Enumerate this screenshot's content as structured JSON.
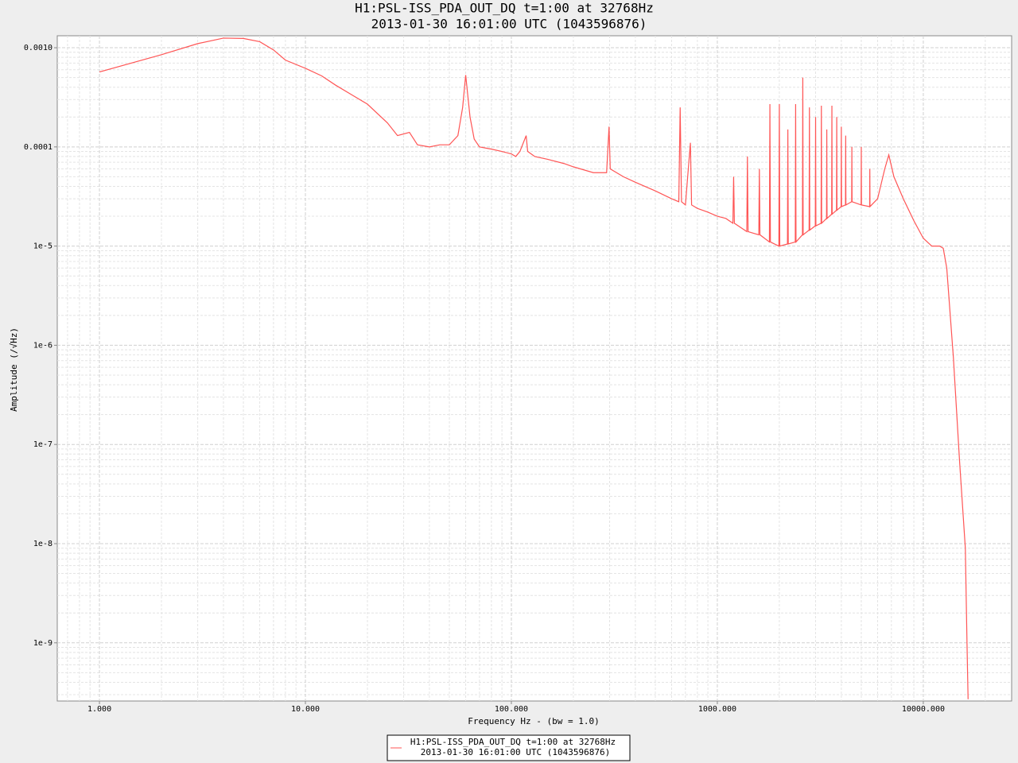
{
  "chart_data": {
    "type": "line",
    "title": "H1:PSL-ISS_PDA_OUT_DQ t=1:00 at 32768Hz",
    "subtitle": "2013-01-30 16:01:00 UTC (1043596876)",
    "x_label": "Frequency Hz - (bw = 1.0)",
    "y_label": "Amplitude  (/√Hz)",
    "x_scale": "log",
    "y_scale": "log",
    "grid": true,
    "xlim": [
      0.624,
      26850
    ],
    "ylim": [
      2.59e-10,
      0.00132
    ],
    "xticks": [
      {
        "value": 1,
        "label": "1.000"
      },
      {
        "value": 10,
        "label": "10.000"
      },
      {
        "value": 100,
        "label": "100.000"
      },
      {
        "value": 1000,
        "label": "1000.000"
      },
      {
        "value": 10000,
        "label": "10000.000"
      }
    ],
    "yticks": [
      {
        "value": 0.001,
        "label": "0.0010"
      },
      {
        "value": 0.0001,
        "label": "0.0001"
      },
      {
        "value": 1e-05,
        "label": "1e-5"
      },
      {
        "value": 1e-06,
        "label": "1e-6"
      },
      {
        "value": 1e-07,
        "label": "1e-7"
      },
      {
        "value": 1e-08,
        "label": "1e-8"
      },
      {
        "value": 1e-09,
        "label": "1e-9"
      }
    ],
    "x": [
      1,
      2,
      3,
      4,
      5,
      6,
      7,
      8,
      10,
      12,
      14,
      17,
      20,
      25,
      28,
      32,
      35,
      40,
      45,
      50,
      55,
      58,
      60,
      63,
      66,
      70,
      80,
      90,
      100,
      105,
      110,
      118,
      120,
      130,
      150,
      180,
      200,
      250,
      290,
      298,
      302,
      350,
      400,
      500,
      600,
      650,
      660,
      670,
      700,
      740,
      750,
      800,
      900,
      1000,
      1100,
      1190,
      1200,
      1210,
      1390,
      1400,
      1410,
      1590,
      1600,
      1610,
      1790,
      1800,
      1810,
      1990,
      2000,
      2010,
      2190,
      2200,
      2210,
      2390,
      2400,
      2410,
      2590,
      2600,
      2610,
      2790,
      2800,
      2810,
      2990,
      3000,
      3010,
      3190,
      3200,
      3210,
      3390,
      3400,
      3410,
      3590,
      3600,
      3610,
      3790,
      3800,
      3810,
      3990,
      4000,
      4010,
      4190,
      4200,
      4210,
      4490,
      4500,
      4510,
      4990,
      5000,
      5010,
      5490,
      5500,
      5510,
      6000,
      6500,
      6800,
      7200,
      8000,
      9000,
      10000,
      11000,
      12000,
      12500,
      13000,
      14000,
      15000,
      16000,
      16300,
      16500
    ],
    "series": [
      {
        "name": "H1:PSL-ISS_PDA_OUT_DQ t=1:00 at 32768Hz",
        "color": "#ff5555",
        "values": [
          0.00057,
          0.00085,
          0.0011,
          0.00125,
          0.00124,
          0.00115,
          0.00095,
          0.00075,
          0.00062,
          0.00052,
          0.00042,
          0.00033,
          0.00027,
          0.000175,
          0.00013,
          0.00014,
          0.000105,
          0.0001,
          0.000105,
          0.000105,
          0.00013,
          0.00025,
          0.00053,
          0.0002,
          0.00012,
          0.0001,
          9.5e-05,
          9e-05,
          8.5e-05,
          8e-05,
          9e-05,
          0.00013,
          9e-05,
          8e-05,
          7.5e-05,
          6.8e-05,
          6.3e-05,
          5.5e-05,
          5.5e-05,
          0.00016,
          6e-05,
          5e-05,
          4.4e-05,
          3.6e-05,
          3e-05,
          2.8e-05,
          0.00025,
          2.8e-05,
          2.6e-05,
          0.00011,
          2.6e-05,
          2.4e-05,
          2.2e-05,
          2e-05,
          1.9e-05,
          1.7e-05,
          5e-05,
          1.7e-05,
          1.4e-05,
          8e-05,
          1.4e-05,
          1.3e-05,
          6e-05,
          1.3e-05,
          1.1e-05,
          0.00027,
          1.1e-05,
          1e-05,
          0.00027,
          1e-05,
          1.05e-05,
          0.00015,
          1.05e-05,
          1.1e-05,
          0.00027,
          1.1e-05,
          1.3e-05,
          0.0005,
          1.3e-05,
          1.45e-05,
          0.00025,
          1.45e-05,
          1.6e-05,
          0.0002,
          1.6e-05,
          1.7e-05,
          0.00026,
          1.7e-05,
          1.9e-05,
          0.00015,
          1.9e-05,
          2.1e-05,
          0.00026,
          2.1e-05,
          2.3e-05,
          0.0002,
          2.3e-05,
          2.5e-05,
          0.00016,
          2.5e-05,
          2.6e-05,
          0.00013,
          2.6e-05,
          2.8e-05,
          0.0001,
          2.8e-05,
          2.6e-05,
          0.0001,
          2.6e-05,
          2.5e-05,
          6e-05,
          2.5e-05,
          3e-05,
          6e-05,
          8.3e-05,
          5e-05,
          3e-05,
          1.8e-05,
          1.2e-05,
          1e-05,
          1e-05,
          9.5e-06,
          6e-06,
          7.5e-07,
          6.8e-08,
          9e-09,
          1e-09,
          2.7e-10
        ]
      }
    ]
  }
}
